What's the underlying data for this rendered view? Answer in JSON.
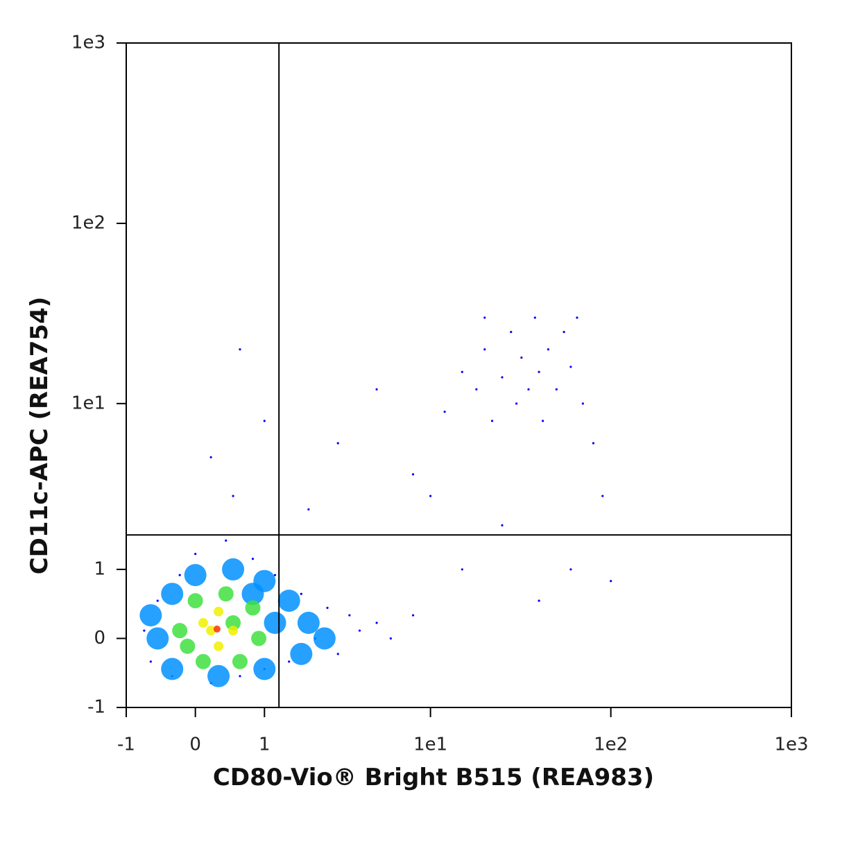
{
  "chart_data": {
    "type": "scatter",
    "x_label": "CD80-Vio® Bright B515 (REA983)",
    "y_label": "CD11c-APC (REA754)",
    "scale": "biexponential",
    "xlim": [
      -1,
      1000
    ],
    "ylim": [
      -1,
      1000
    ],
    "xticks": [
      -1,
      0,
      1,
      {
        "value": 10,
        "label": "1e1"
      },
      {
        "value": 100,
        "label": "1e2"
      },
      {
        "value": 1000,
        "label": "1e3"
      }
    ],
    "yticks": [
      -1,
      0,
      1,
      {
        "value": 10,
        "label": "1e1"
      },
      {
        "value": 100,
        "label": "1e2"
      },
      {
        "value": 1000,
        "label": "1e3"
      }
    ],
    "gates": {
      "x": 1.28,
      "y": 1.74
    },
    "series": [
      {
        "color": "#0000ff",
        "x": [
          -0.7,
          -0.6,
          -0.5,
          -0.3,
          -0.2,
          0,
          0.2,
          0.4,
          0.6,
          0.8,
          1,
          1.2,
          1.5,
          1.8,
          2.2,
          2.6,
          3,
          3.5,
          4,
          5,
          6,
          8,
          2,
          0.5,
          0.2,
          1,
          0.6,
          3,
          5,
          8,
          12,
          15,
          18,
          20,
          22,
          25,
          28,
          30,
          32,
          35,
          38,
          40,
          42,
          45,
          50,
          55,
          60,
          65,
          70,
          20,
          80,
          90,
          60,
          40,
          100,
          25,
          15,
          10
        ],
        "values": [
          0.1,
          -0.3,
          0.5,
          -0.5,
          0.9,
          1.3,
          -0.6,
          1.6,
          -0.5,
          1.2,
          -0.4,
          0.9,
          -0.3,
          0.6,
          0,
          0.4,
          -0.2,
          0.3,
          0.1,
          0.2,
          0,
          0.3,
          2.5,
          3,
          5,
          8,
          20,
          6,
          12,
          4,
          9,
          15,
          12,
          20,
          8,
          14,
          25,
          10,
          18,
          12,
          30,
          15,
          8,
          20,
          12,
          25,
          16,
          30,
          10,
          30,
          6,
          3,
          1,
          0.5,
          0.8,
          2,
          1,
          3
        ]
      },
      {
        "color": "#0090ff",
        "x": [
          -0.5,
          -0.3,
          0,
          0.5,
          1,
          1.5,
          2,
          2.5,
          1.8,
          1,
          0.3,
          -0.3,
          -0.6,
          1.2,
          0.8
        ],
        "values": [
          0,
          0.6,
          0.9,
          1,
          0.8,
          0.5,
          0.2,
          0,
          -0.2,
          -0.4,
          -0.5,
          -0.4,
          0.3,
          0.2,
          0.6
        ]
      },
      {
        "color": "#40e040",
        "x": [
          -0.2,
          0,
          0.4,
          0.8,
          0.9,
          0.6,
          0.1,
          -0.1,
          0.5
        ],
        "values": [
          0.1,
          0.5,
          0.6,
          0.4,
          0,
          -0.3,
          -0.3,
          -0.1,
          0.2
        ]
      },
      {
        "color": "#f0f000",
        "x": [
          0.1,
          0.3,
          0.5,
          0.3,
          0.2
        ],
        "values": [
          0.2,
          0.35,
          0.1,
          -0.1,
          0.1
        ]
      },
      {
        "color": "#ff3000",
        "x": [
          0.28
        ],
        "values": [
          0.12
        ]
      }
    ]
  }
}
